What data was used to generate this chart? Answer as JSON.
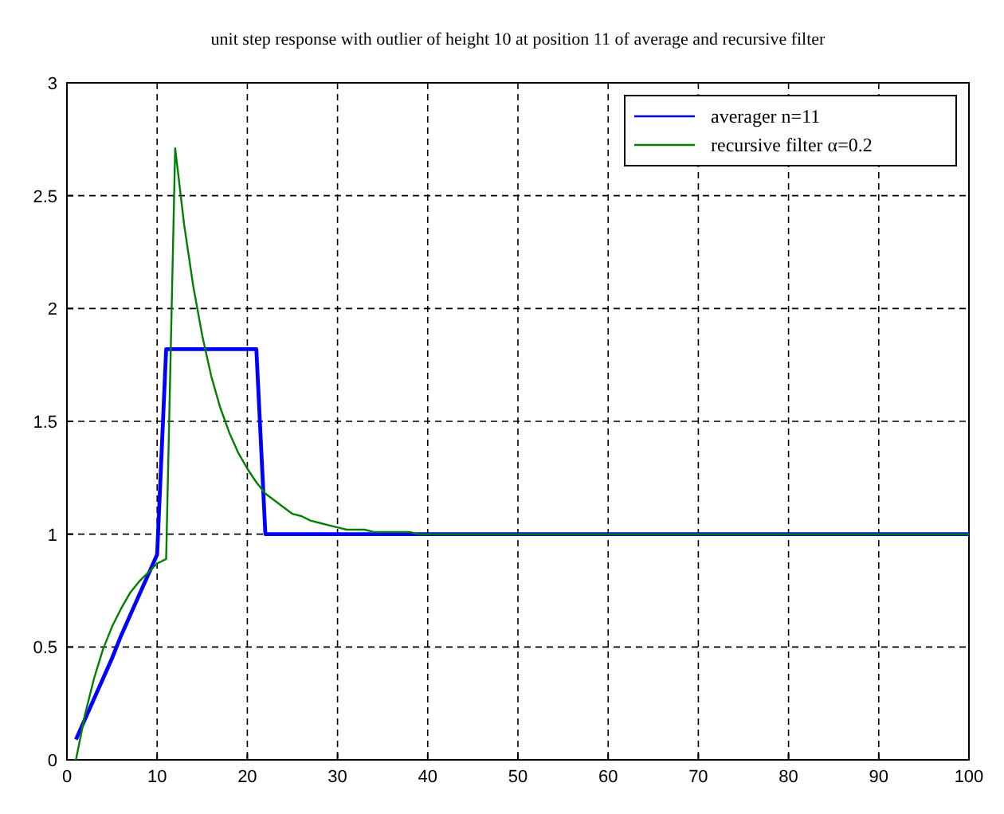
{
  "chart_data": {
    "type": "line",
    "title": "unit step response with outlier of height 10 at position 11 of average and recursive filter",
    "xlim": [
      0,
      100
    ],
    "xticks": [
      0,
      10,
      20,
      30,
      40,
      50,
      60,
      70,
      80,
      90,
      100
    ],
    "ylim": [
      0,
      3
    ],
    "yticks": [
      0,
      0.5,
      1,
      1.5,
      2,
      2.5,
      3
    ],
    "grid": true,
    "line_style": "solid",
    "legend": "top right",
    "series": [
      {
        "name": "averager n=11",
        "color": "#0000ff",
        "x": [
          1,
          2,
          3,
          4,
          5,
          6,
          7,
          8,
          9,
          10,
          11,
          21,
          22,
          100
        ],
        "values": [
          0.09,
          0.18,
          0.27,
          0.36,
          0.45,
          0.55,
          0.64,
          0.73,
          0.82,
          0.91,
          1.82,
          1.82,
          1,
          1
        ]
      },
      {
        "name": "recursive filter α=0.2",
        "color": "#008000",
        "x": [
          1,
          2,
          3,
          4,
          5,
          6,
          7,
          8,
          9,
          10,
          11,
          12,
          13,
          14,
          15,
          16,
          17,
          18,
          19,
          20,
          21,
          22,
          23,
          24,
          25,
          26,
          27,
          28,
          29,
          30,
          31,
          32,
          33,
          34,
          35,
          36,
          37,
          38,
          39,
          40,
          100
        ],
        "values": [
          0,
          0.2,
          0.36,
          0.49,
          0.59,
          0.67,
          0.74,
          0.79,
          0.83,
          0.87,
          0.89,
          2.71,
          2.37,
          2.1,
          1.88,
          1.7,
          1.56,
          1.45,
          1.36,
          1.29,
          1.23,
          1.18,
          1.15,
          1.12,
          1.09,
          1.08,
          1.06,
          1.05,
          1.04,
          1.03,
          1.02,
          1.02,
          1.02,
          1.01,
          1.01,
          1.01,
          1.01,
          1.01,
          1,
          1,
          1
        ]
      }
    ]
  }
}
